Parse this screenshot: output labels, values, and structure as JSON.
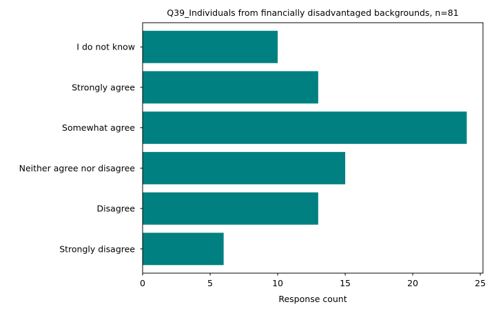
{
  "chart_data": {
    "type": "bar",
    "orientation": "horizontal",
    "title": "Q39_Individuals from financially disadvantaged backgrounds, n=81",
    "xlabel": "Response count",
    "ylabel": "",
    "categories": [
      "Strongly disagree",
      "Disagree",
      "Neither agree nor disagree",
      "Somewhat agree",
      "Strongly agree",
      "I do not know"
    ],
    "values": [
      6,
      13,
      15,
      24,
      13,
      10
    ],
    "xlim": [
      0,
      25.2
    ],
    "xticks": [
      0,
      5,
      10,
      15,
      20,
      25
    ],
    "bar_color": "#008080",
    "grid": false,
    "legend": "none"
  }
}
